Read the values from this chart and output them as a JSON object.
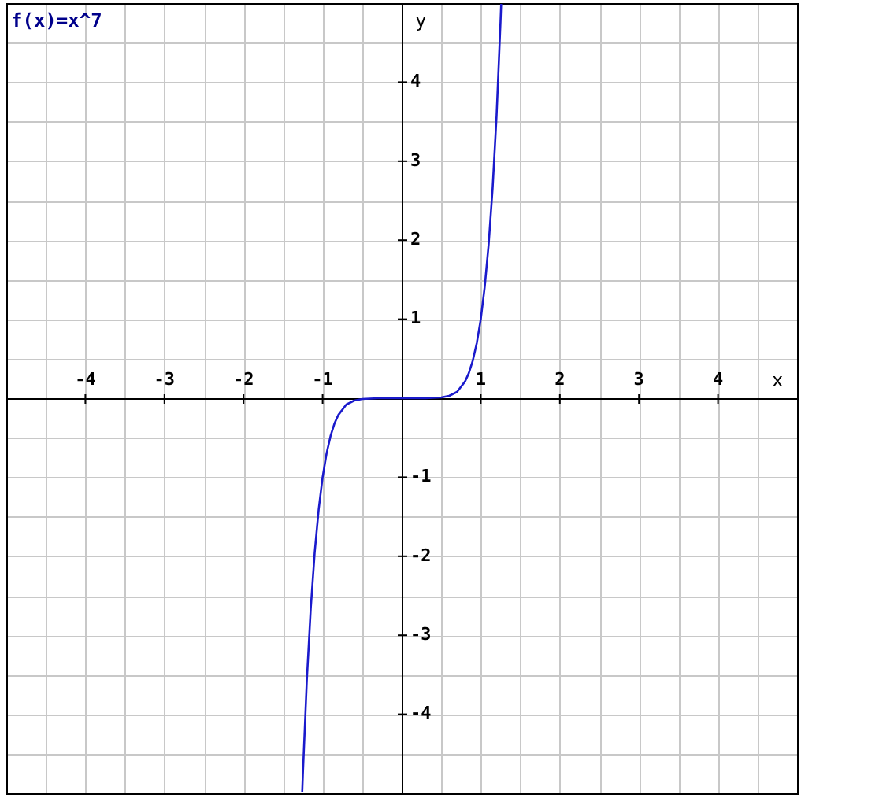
{
  "chart_data": {
    "type": "line",
    "title": "f(x)=x^7",
    "xlabel": "x",
    "ylabel": "y",
    "x": [
      -1.258,
      -1.25,
      -1.2,
      -1.15,
      -1.1,
      -1.05,
      -1.0,
      -0.95,
      -0.9,
      -0.85,
      -0.8,
      -0.7,
      -0.6,
      -0.5,
      -0.3,
      0,
      0.3,
      0.5,
      0.6,
      0.7,
      0.8,
      0.85,
      0.9,
      0.95,
      1.0,
      1.05,
      1.1,
      1.15,
      1.2,
      1.25,
      1.258
    ],
    "series": [
      {
        "color": "#1a1acc",
        "values": [
          -4.99,
          -4.77,
          -3.58,
          -2.66,
          -1.95,
          -1.41,
          -1,
          -0.7,
          -0.48,
          -0.32,
          -0.21,
          -0.08,
          -0.03,
          -0.01,
          0,
          0,
          0,
          0.01,
          0.03,
          0.08,
          0.21,
          0.32,
          0.48,
          0.7,
          1,
          1.41,
          1.95,
          2.66,
          3.58,
          4.77,
          4.99
        ]
      }
    ],
    "xlim": [
      -5,
      5
    ],
    "ylim": [
      -5,
      5
    ],
    "xticks": [
      {
        "value": -5,
        "label": null
      },
      {
        "value": -4.5,
        "label": null
      },
      -4,
      {
        "value": -3.5,
        "label": null
      },
      -3,
      {
        "value": -2.5,
        "label": null
      },
      -2,
      {
        "value": -1.5,
        "label": null
      },
      -1,
      {
        "value": -0.5,
        "label": null
      },
      {
        "value": 0,
        "label": null
      },
      {
        "value": 0.5,
        "label": null
      },
      1,
      {
        "value": 1.5,
        "label": null
      },
      2,
      {
        "value": 2.5,
        "label": null
      },
      3,
      {
        "value": 3.5,
        "label": null
      },
      4,
      {
        "value": 4.5,
        "label": null
      },
      {
        "value": 5,
        "label": null
      }
    ],
    "yticks": [
      {
        "value": -5,
        "label": null
      },
      {
        "value": -4.5,
        "label": null
      },
      -4,
      {
        "value": -3.5,
        "label": null
      },
      -3,
      {
        "value": -2.5,
        "label": null
      },
      -2,
      {
        "value": -1.5,
        "label": null
      },
      -1,
      {
        "value": -0.5,
        "label": null
      },
      {
        "value": 0,
        "label": null
      },
      {
        "value": 0.5,
        "label": null
      },
      1,
      {
        "value": 1.5,
        "label": null
      },
      2,
      {
        "value": 2.5,
        "label": null
      },
      3,
      {
        "value": 3.5,
        "label": null
      },
      4,
      {
        "value": 4.5,
        "label": null
      },
      {
        "value": 5,
        "label": null
      }
    ],
    "grid": true,
    "marker": "none",
    "line_style": "solid",
    "legend": false
  }
}
